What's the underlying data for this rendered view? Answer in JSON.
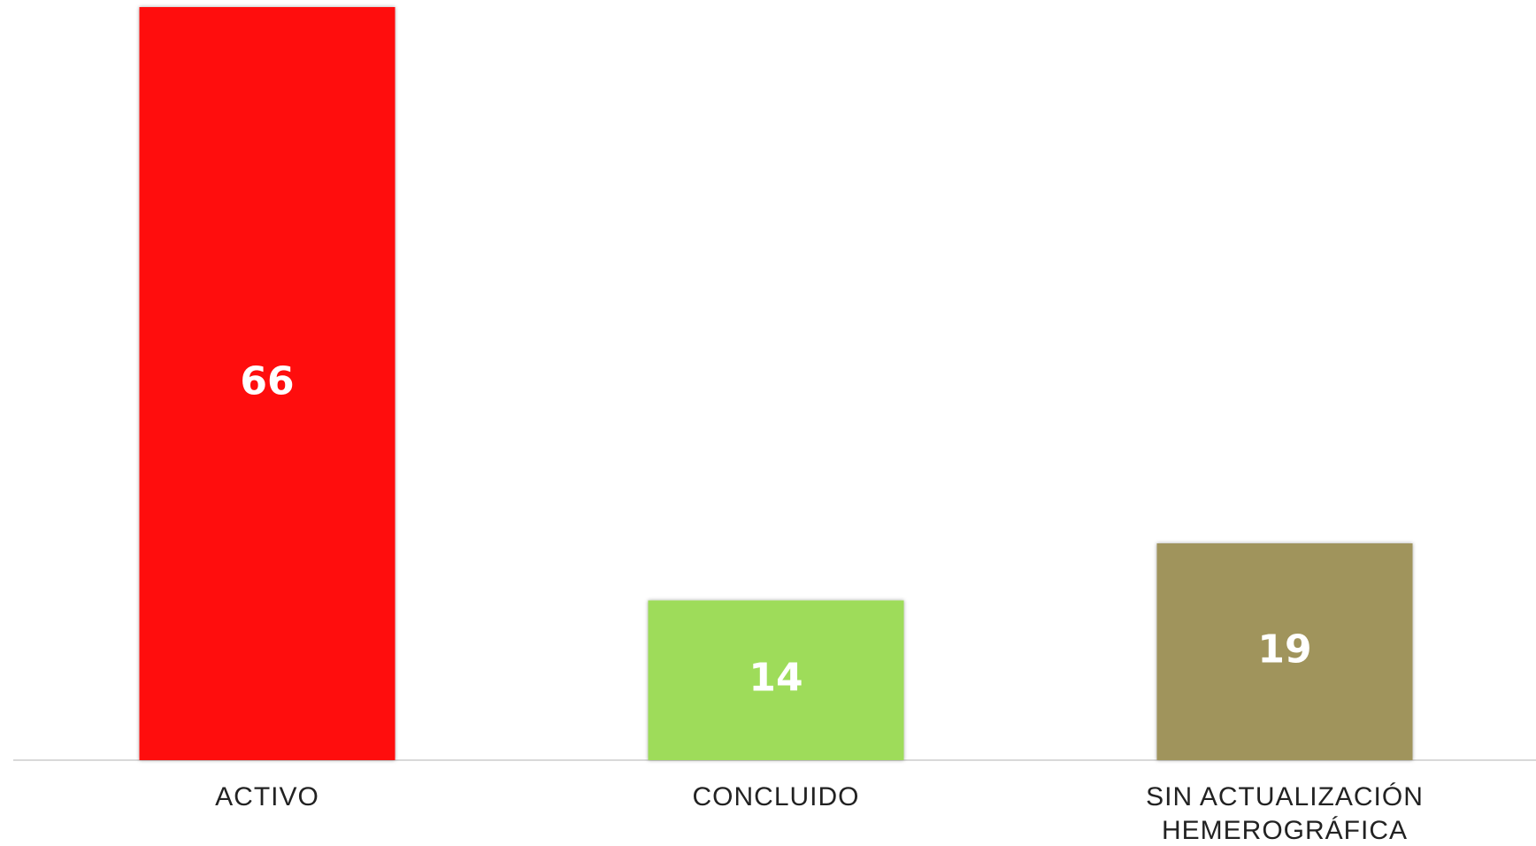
{
  "chart_data": {
    "type": "bar",
    "categories": [
      "ACTIVO",
      "CONCLUIDO",
      "SIN ACTUALIZACIÓN HEMEROGRÁFICA"
    ],
    "values": [
      66,
      14,
      19
    ],
    "colors": [
      "#ff0a0a",
      "#9edc5a",
      "#a0945c"
    ],
    "ylim": [
      0,
      66
    ]
  }
}
